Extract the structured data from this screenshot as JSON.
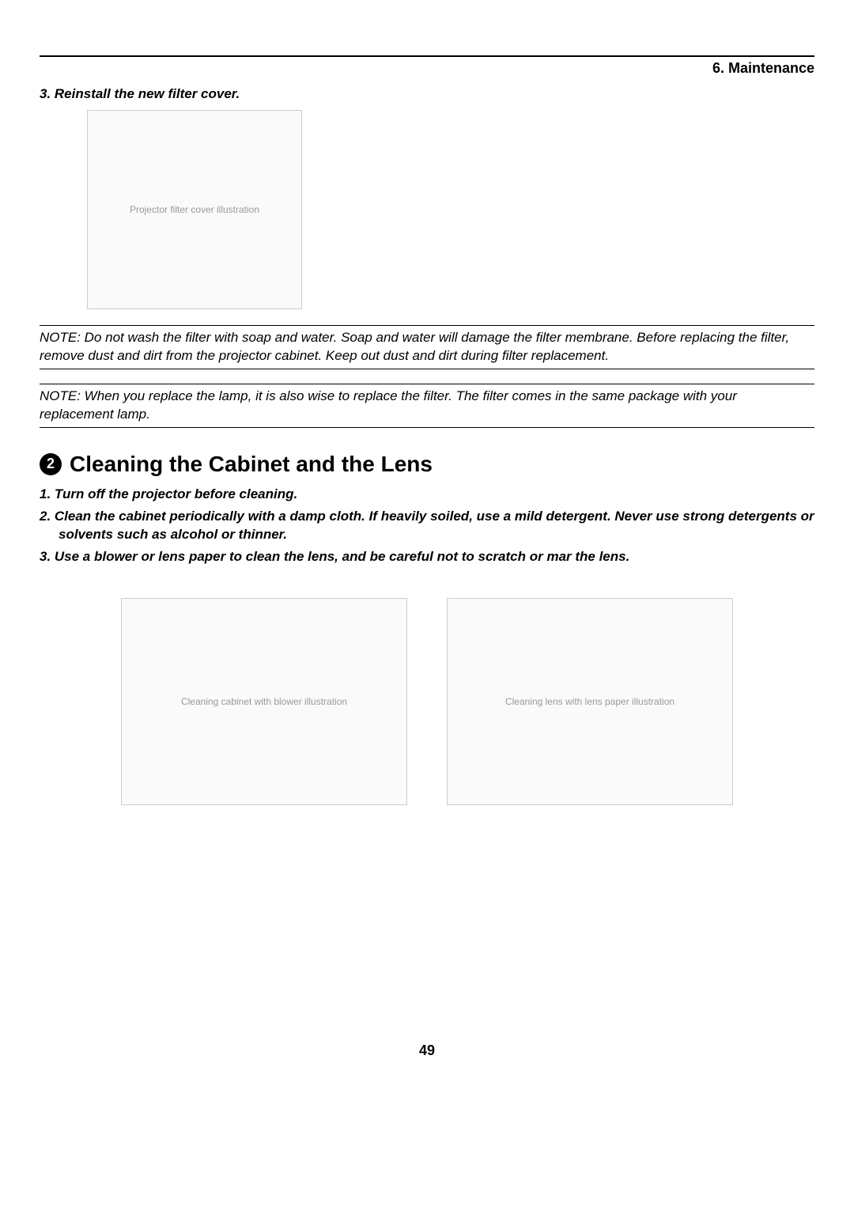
{
  "header": {
    "chapter": "6. Maintenance"
  },
  "filter_step": {
    "text": "3. Reinstall the new filter cover."
  },
  "figure1": {
    "alt": "Projector filter cover illustration"
  },
  "note1": {
    "text": "NOTE: Do not wash the filter with soap and water. Soap and water will damage the filter membrane. Before replacing the filter, remove dust and dirt from the projector cabinet. Keep out dust and dirt during filter replacement."
  },
  "note2": {
    "text": "NOTE: When you replace the lamp, it is also wise to replace the filter. The filter comes in the same package with your replacement lamp."
  },
  "section2": {
    "number": "2",
    "title": "Cleaning the Cabinet and the Lens",
    "steps": [
      "1.  Turn off the projector before cleaning.",
      "2.  Clean the cabinet periodically with a damp cloth. If heavily soiled, use a mild detergent. Never use strong detergents or solvents such as alcohol or thinner.",
      "3.  Use a blower or lens paper to clean the lens, and be careful not to scratch or mar the lens."
    ]
  },
  "figure2": {
    "alt": "Cleaning cabinet with blower illustration"
  },
  "figure3": {
    "alt": "Cleaning lens with lens paper illustration"
  },
  "pageNumber": "49"
}
